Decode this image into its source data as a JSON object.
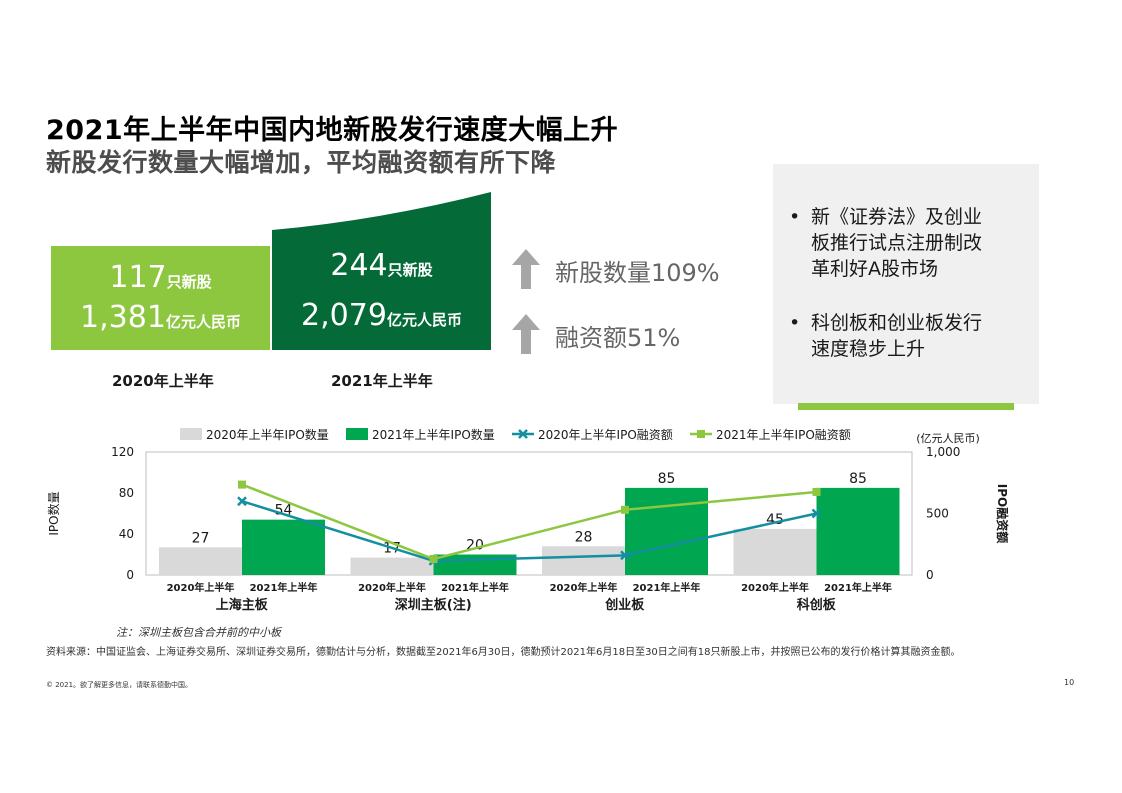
{
  "title": "2021年上半年中国内地新股发行速度大幅上升",
  "subtitle": "新股发行数量大幅增加，平均融资额有所下降",
  "summary": {
    "y2020": {
      "count": "117",
      "count_unit": "只新股",
      "amount": "1,381",
      "amount_unit": "亿元人民币",
      "label": "2020年上半年"
    },
    "y2021": {
      "count": "244",
      "count_unit": "只新股",
      "amount": "2,079",
      "amount_unit": "亿元人民币",
      "label": "2021年上半年"
    }
  },
  "growth": [
    {
      "label": "新股数量",
      "value": "109%"
    },
    {
      "label": "融资额",
      "value": "51%"
    }
  ],
  "bullets": [
    [
      "新《证券法》及创业",
      "板推行试点注册制改",
      "革利好A股市场"
    ],
    [
      "科创板和创业板发行",
      "速度稳步上升"
    ]
  ],
  "chart_data": {
    "type": "bar",
    "categories": [
      "上海主板",
      "深圳主板(注)",
      "创业板",
      "科创板"
    ],
    "sub_categories": [
      "2020年上半年",
      "2021年上半年"
    ],
    "series": [
      {
        "name": "2020年上半年IPO数量",
        "kind": "bar",
        "axis": "left",
        "color": "#d9d9d9",
        "values": [
          27,
          17,
          28,
          45
        ]
      },
      {
        "name": "2021年上半年IPO数量",
        "kind": "bar",
        "axis": "left",
        "color": "#00a650",
        "values": [
          54,
          20,
          85,
          85
        ]
      },
      {
        "name": "2020年上半年IPO融资额",
        "kind": "line",
        "axis": "right",
        "color": "#138fa0",
        "values": [
          600,
          115,
          160,
          500
        ]
      },
      {
        "name": "2021年上半年IPO融资额",
        "kind": "line",
        "axis": "right",
        "color": "#8dc63f",
        "values": [
          735,
          130,
          530,
          675
        ]
      }
    ],
    "ylabel": "IPO数量",
    "ylim": [
      0,
      120
    ],
    "yticks": [
      0,
      40,
      80,
      120
    ],
    "y2label": "IPO融资额",
    "y2unit": "(亿元人民币)",
    "y2lim": [
      0,
      1000
    ],
    "y2ticks": [
      "0",
      "500",
      "1,000"
    ],
    "y2tick_values": [
      0,
      500,
      1000
    ],
    "legend_position": "top",
    "grid": false
  },
  "note": "注：深圳主板包含合并前的中小板",
  "source": "资料来源：中国证监会、上海证券交易所、深圳证券交易所，德勤估计与分析，数据截至2021年6月30日，德勤预计2021年6月18日至30日之间有18只新股上市，并按照已公布的发行价格计算其融资金额。",
  "copyright": "© 2021。欲了解更多信息，请联系德勤中国。",
  "page_number": "10"
}
